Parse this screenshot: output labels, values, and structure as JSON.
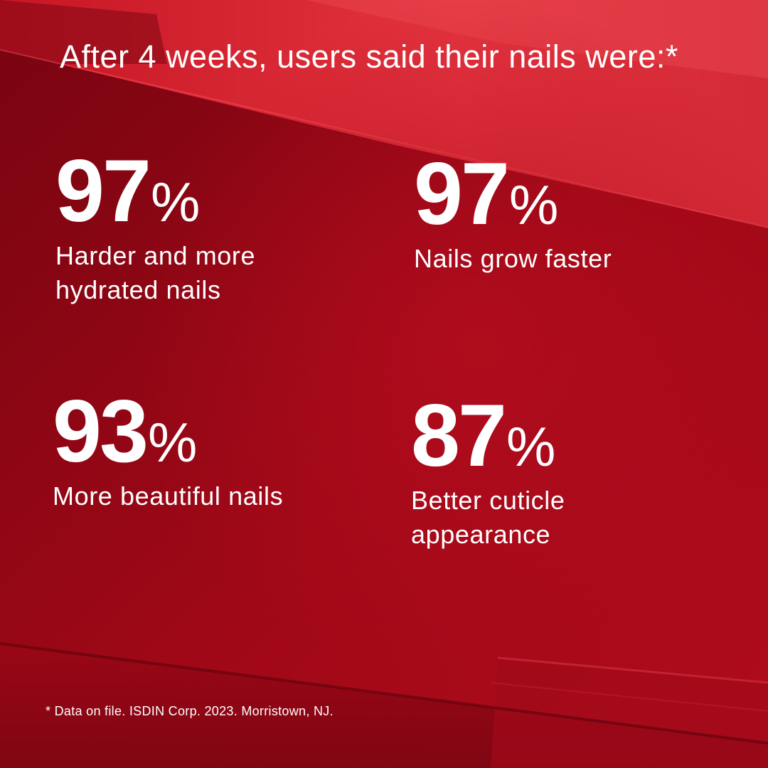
{
  "headline": "After 4 weeks, users said their nails were:*",
  "stats": [
    {
      "value": "97",
      "unit": "%",
      "label": "Harder and more hydrated nails"
    },
    {
      "value": "97",
      "unit": "%",
      "label": "Nails grow faster"
    },
    {
      "value": "93",
      "unit": "%",
      "label": "More beautiful nails"
    },
    {
      "value": "87",
      "unit": "%",
      "label": "Better cuticle appearance"
    }
  ],
  "footnote": "* Data on file. ISDIN Corp. 2023. Morristown, NJ.",
  "colors": {
    "background": "#9e0717",
    "background_light": "#e0303c",
    "background_dark": "#6e0410",
    "text": "#ffffff"
  }
}
